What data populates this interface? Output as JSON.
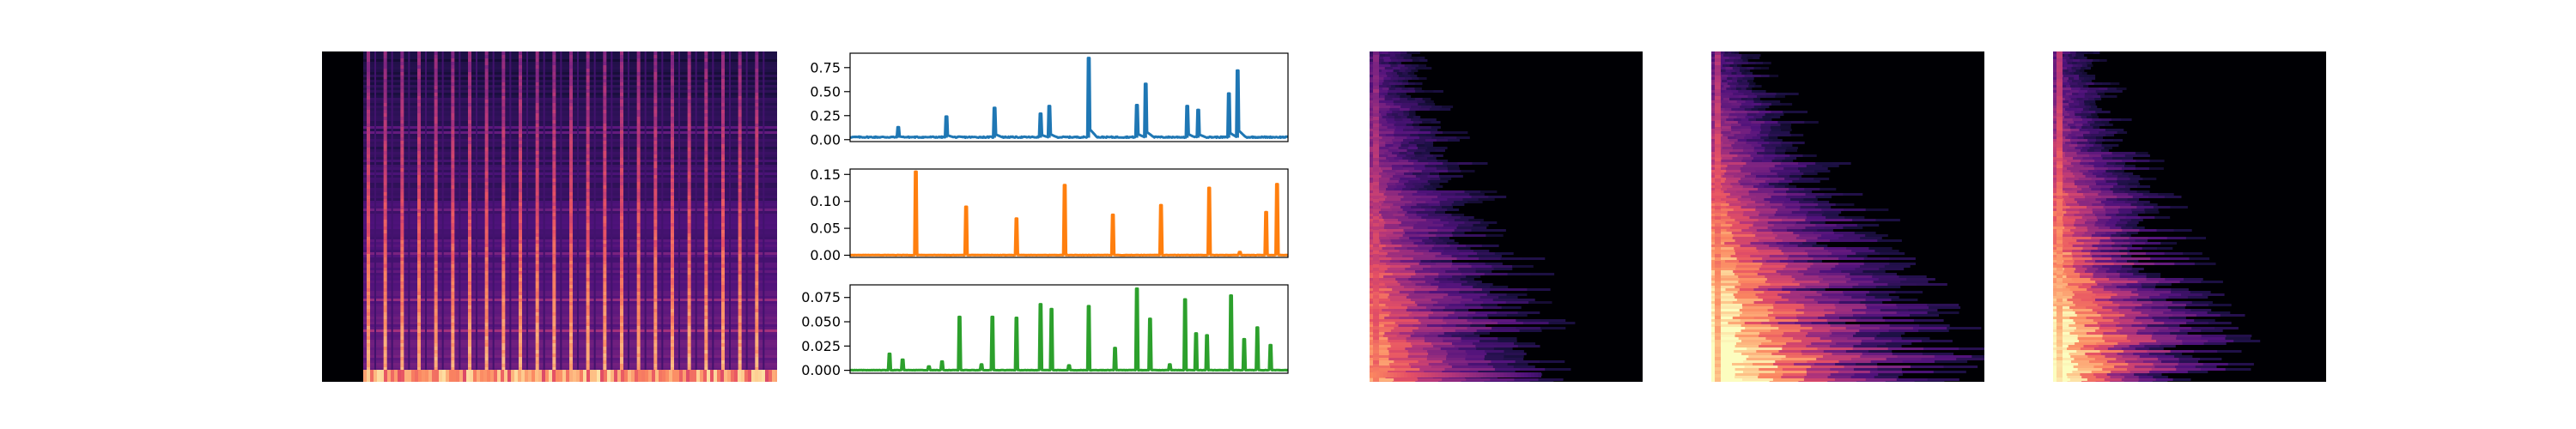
{
  "figure": {
    "background": "#ffffff",
    "panels": [
      {
        "kind": "spectrogram",
        "name": "spectrogram-1",
        "colormap": "magma",
        "description_free": true
      },
      {
        "kind": "line-stack",
        "name": "line-stack"
      },
      {
        "kind": "spectrogram",
        "name": "spectrogram-2",
        "colormap": "magma"
      },
      {
        "kind": "spectrogram",
        "name": "spectrogram-3",
        "colormap": "magma"
      },
      {
        "kind": "spectrogram",
        "name": "spectrogram-4",
        "colormap": "magma"
      }
    ]
  },
  "chart_data": [
    {
      "type": "line",
      "title": "",
      "xlabel": "",
      "ylabel": "",
      "x_ticks_shown": false,
      "ylim": [
        -0.02,
        0.9
      ],
      "yticks": [
        0.0,
        0.25,
        0.5,
        0.75
      ],
      "ytick_labels": [
        "0.00",
        "0.25",
        "0.50",
        "0.75"
      ],
      "color": "#1f77b4",
      "baseline": 0.02,
      "x_range": [
        0,
        1
      ],
      "spikes": [
        {
          "x": 0.11,
          "y": 0.13
        },
        {
          "x": 0.22,
          "y": 0.24
        },
        {
          "x": 0.33,
          "y": 0.33
        },
        {
          "x": 0.435,
          "y": 0.27
        },
        {
          "x": 0.455,
          "y": 0.35
        },
        {
          "x": 0.545,
          "y": 0.85
        },
        {
          "x": 0.655,
          "y": 0.36
        },
        {
          "x": 0.675,
          "y": 0.58
        },
        {
          "x": 0.77,
          "y": 0.35
        },
        {
          "x": 0.795,
          "y": 0.31
        },
        {
          "x": 0.865,
          "y": 0.48
        },
        {
          "x": 0.885,
          "y": 0.72
        }
      ]
    },
    {
      "type": "line",
      "title": "",
      "xlabel": "",
      "ylabel": "",
      "x_ticks_shown": false,
      "ylim": [
        -0.004,
        0.16
      ],
      "yticks": [
        0.0,
        0.05,
        0.1,
        0.15
      ],
      "ytick_labels": [
        "0.00",
        "0.05",
        "0.10",
        "0.15"
      ],
      "color": "#ff7f0e",
      "baseline": 0.0,
      "x_range": [
        0,
        1
      ],
      "spikes": [
        {
          "x": 0.15,
          "y": 0.155
        },
        {
          "x": 0.265,
          "y": 0.09
        },
        {
          "x": 0.38,
          "y": 0.068
        },
        {
          "x": 0.49,
          "y": 0.13
        },
        {
          "x": 0.6,
          "y": 0.075
        },
        {
          "x": 0.71,
          "y": 0.093
        },
        {
          "x": 0.82,
          "y": 0.125
        },
        {
          "x": 0.89,
          "y": 0.006
        },
        {
          "x": 0.95,
          "y": 0.08
        },
        {
          "x": 0.975,
          "y": 0.132
        }
      ]
    },
    {
      "type": "line",
      "title": "",
      "xlabel": "",
      "ylabel": "",
      "x_ticks_shown": false,
      "ylim": [
        -0.003,
        0.088
      ],
      "yticks": [
        0.0,
        0.025,
        0.05,
        0.075
      ],
      "ytick_labels": [
        "0.000",
        "0.025",
        "0.050",
        "0.075"
      ],
      "color": "#2ca02c",
      "baseline": 0.0,
      "x_range": [
        0,
        1
      ],
      "spikes": [
        {
          "x": 0.09,
          "y": 0.017
        },
        {
          "x": 0.12,
          "y": 0.011
        },
        {
          "x": 0.18,
          "y": 0.004
        },
        {
          "x": 0.21,
          "y": 0.009
        },
        {
          "x": 0.25,
          "y": 0.055
        },
        {
          "x": 0.3,
          "y": 0.006
        },
        {
          "x": 0.325,
          "y": 0.055
        },
        {
          "x": 0.38,
          "y": 0.054
        },
        {
          "x": 0.435,
          "y": 0.068
        },
        {
          "x": 0.46,
          "y": 0.063
        },
        {
          "x": 0.5,
          "y": 0.005
        },
        {
          "x": 0.545,
          "y": 0.066
        },
        {
          "x": 0.605,
          "y": 0.023
        },
        {
          "x": 0.655,
          "y": 0.084
        },
        {
          "x": 0.685,
          "y": 0.053
        },
        {
          "x": 0.73,
          "y": 0.006
        },
        {
          "x": 0.765,
          "y": 0.073
        },
        {
          "x": 0.79,
          "y": 0.038
        },
        {
          "x": 0.815,
          "y": 0.036
        },
        {
          "x": 0.87,
          "y": 0.077
        },
        {
          "x": 0.9,
          "y": 0.032
        },
        {
          "x": 0.93,
          "y": 0.044
        },
        {
          "x": 0.96,
          "y": 0.026
        }
      ]
    }
  ],
  "spectrograms": [
    {
      "name": "spectrogram-1",
      "style": "periodic-vertical",
      "stripes": 24,
      "bg": "#000004"
    },
    {
      "name": "spectrogram-2",
      "style": "left-decay",
      "bg": "#000004"
    },
    {
      "name": "spectrogram-3",
      "style": "left-decay-bright",
      "bg": "#000004"
    },
    {
      "name": "spectrogram-4",
      "style": "left-decay-hot",
      "bg": "#000004"
    }
  ]
}
